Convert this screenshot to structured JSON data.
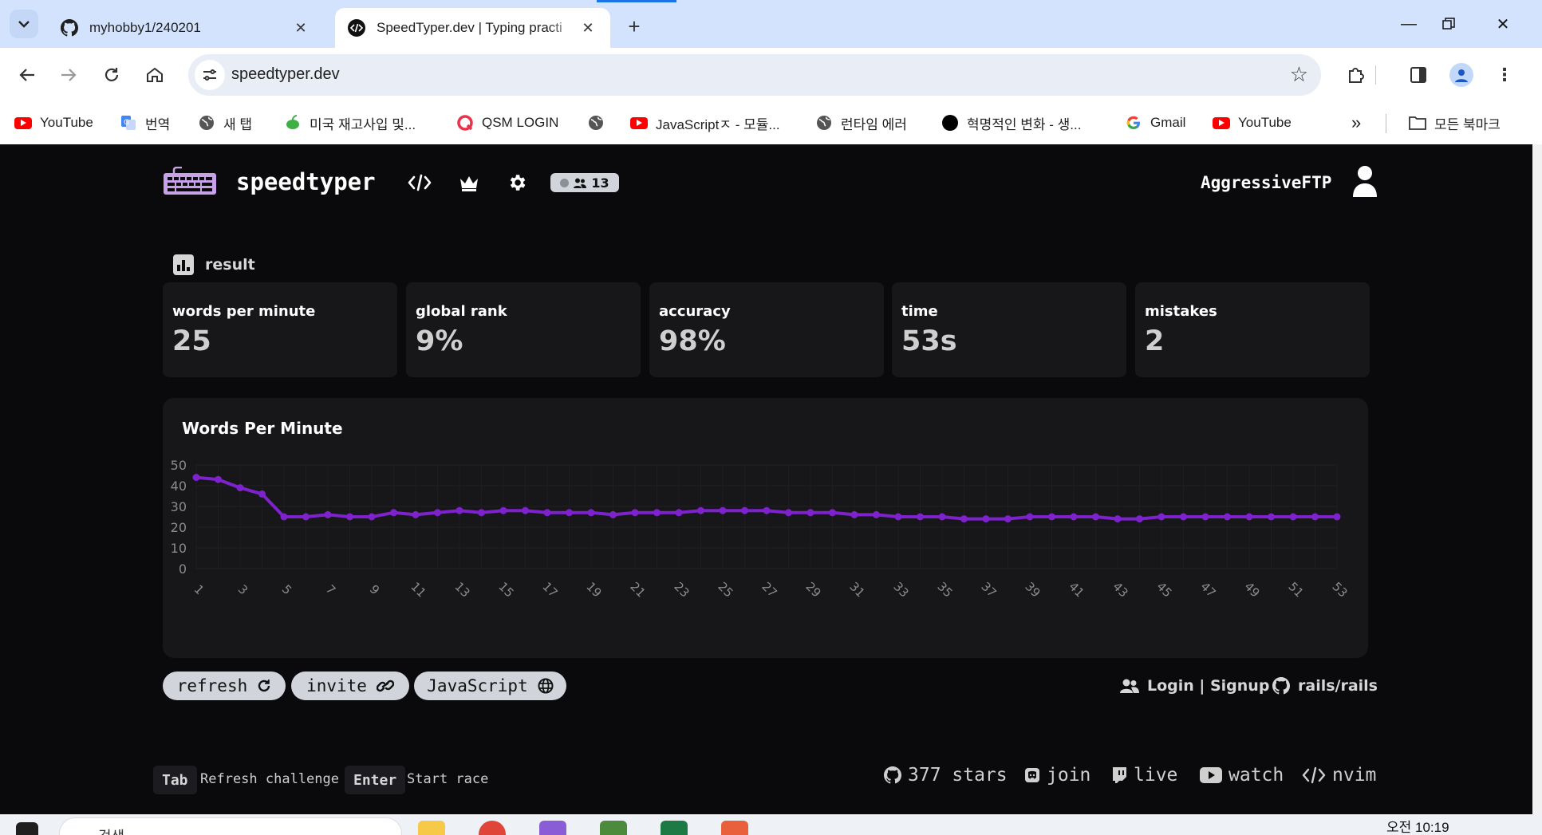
{
  "browser": {
    "tabs": [
      {
        "title": "myhobby1/240201",
        "favicon": "github-icon"
      },
      {
        "title": "SpeedTyper.dev | Typing practi",
        "favicon": "code-icon",
        "active": true
      }
    ],
    "url": "speedtyper.dev",
    "bookmarks": [
      {
        "label": "YouTube",
        "icon": "youtube-icon"
      },
      {
        "label": "번역",
        "icon": "translate-icon"
      },
      {
        "label": "새 탭",
        "icon": "globe-icon"
      },
      {
        "label": "미국 재고사입 및...",
        "icon": "leaf-icon"
      },
      {
        "label": "QSM LOGIN",
        "icon": "qsm-icon"
      },
      {
        "label": "",
        "icon": "globe-icon"
      },
      {
        "label": "JavaScriptㅈ - 모듈...",
        "icon": "youtube-icon"
      },
      {
        "label": "런타임 에러",
        "icon": "globe-icon"
      },
      {
        "label": "혁명적인 변화 - 생...",
        "icon": "black-circle-icon"
      },
      {
        "label": "Gmail",
        "icon": "google-icon"
      },
      {
        "label": "YouTube",
        "icon": "youtube-icon"
      }
    ],
    "all_bookmarks_label": "모든 북마크"
  },
  "header": {
    "brand": "speedtyper",
    "online_count": "13",
    "username": "AggressiveFTP"
  },
  "result": {
    "section_label": "result",
    "stats": [
      {
        "label": "words per minute",
        "value": "25"
      },
      {
        "label": "global rank",
        "value": "9%"
      },
      {
        "label": "accuracy",
        "value": "98%"
      },
      {
        "label": "time",
        "value": "53s"
      },
      {
        "label": "mistakes",
        "value": "2"
      }
    ]
  },
  "chart_data": {
    "type": "line",
    "title": "Words Per Minute",
    "xlabel": "",
    "ylabel": "",
    "ylim": [
      0,
      50
    ],
    "yticks": [
      0,
      10,
      20,
      30,
      40,
      50
    ],
    "xtick_labels": [
      "1",
      "3",
      "5",
      "7",
      "9",
      "11",
      "13",
      "15",
      "17",
      "19",
      "21",
      "23",
      "25",
      "27",
      "29",
      "31",
      "33",
      "35",
      "37",
      "39",
      "41",
      "43",
      "45",
      "47",
      "49",
      "51",
      "53"
    ],
    "grid": true,
    "color": "#7e22ce",
    "x": [
      1,
      2,
      3,
      4,
      5,
      6,
      7,
      8,
      9,
      10,
      11,
      12,
      13,
      14,
      15,
      16,
      17,
      18,
      19,
      20,
      21,
      22,
      23,
      24,
      25,
      26,
      27,
      28,
      29,
      30,
      31,
      32,
      33,
      34,
      35,
      36,
      37,
      38,
      39,
      40,
      41,
      42,
      43,
      44,
      45,
      46,
      47,
      48,
      49,
      50,
      51,
      52,
      53
    ],
    "series": [
      {
        "values": [
          44,
          43,
          39,
          36,
          25,
          25,
          26,
          25,
          25,
          27,
          26,
          27,
          28,
          27,
          28,
          28,
          27,
          27,
          27,
          26,
          27,
          27,
          27,
          28,
          28,
          28,
          28,
          27,
          27,
          27,
          26,
          26,
          25,
          25,
          25,
          24,
          24,
          24,
          25,
          25,
          25,
          25,
          24,
          24,
          25,
          25,
          25,
          25,
          25,
          25,
          25,
          25,
          25
        ]
      }
    ]
  },
  "actions": {
    "refresh": "refresh",
    "invite": "invite",
    "language": "JavaScript",
    "login": "Login | Signup",
    "repo": "rails/rails"
  },
  "shortcuts": [
    {
      "key": "Tab",
      "desc": "Refresh challenge"
    },
    {
      "key": "Enter",
      "desc": "Start race"
    }
  ],
  "footer": {
    "stars": "377 stars",
    "join": "join",
    "live": "live",
    "watch": "watch",
    "nvim": "nvim"
  },
  "taskbar": {
    "search_placeholder": "검색",
    "clock": "오전 10:19"
  }
}
